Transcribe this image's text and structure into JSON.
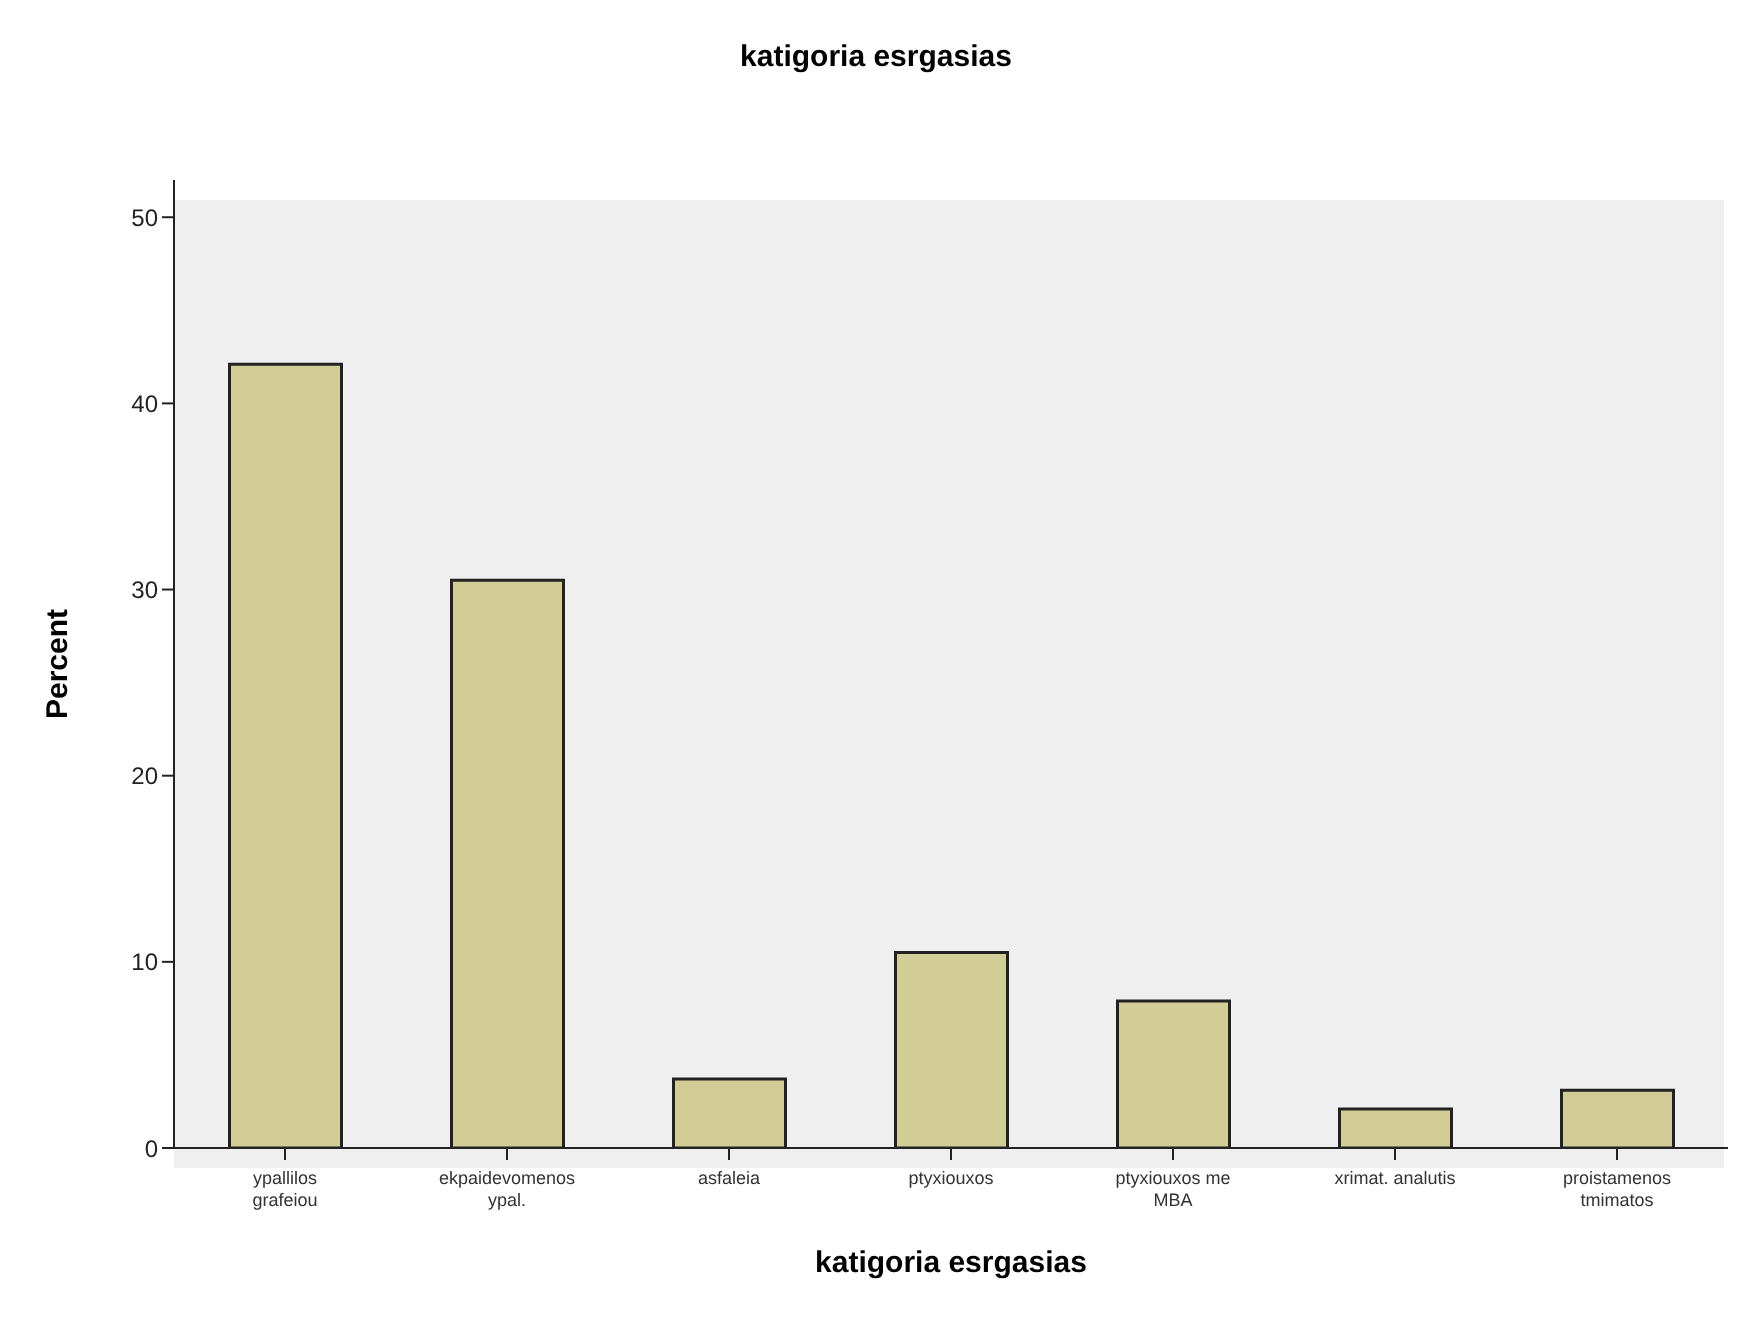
{
  "chart_data": {
    "type": "bar",
    "title": "katigoria esrgasias",
    "xlabel": "katigoria esrgasias",
    "ylabel": "Percent",
    "categories": [
      "ypallilos grafeiou",
      "ekpaidevomenos ypal.",
      "asfaleia",
      "ptyxiouxos",
      "ptyxiouxos me MBA",
      "xrimat. analutis",
      "proistamenos tmimatos"
    ],
    "values": [
      42.1,
      30.5,
      3.7,
      10.5,
      7.9,
      2.1,
      3.1
    ],
    "color": "#d2cd96",
    "ylim": [
      0,
      52
    ],
    "yticks": [
      0,
      10,
      20,
      30,
      40,
      50
    ],
    "grid": false
  }
}
